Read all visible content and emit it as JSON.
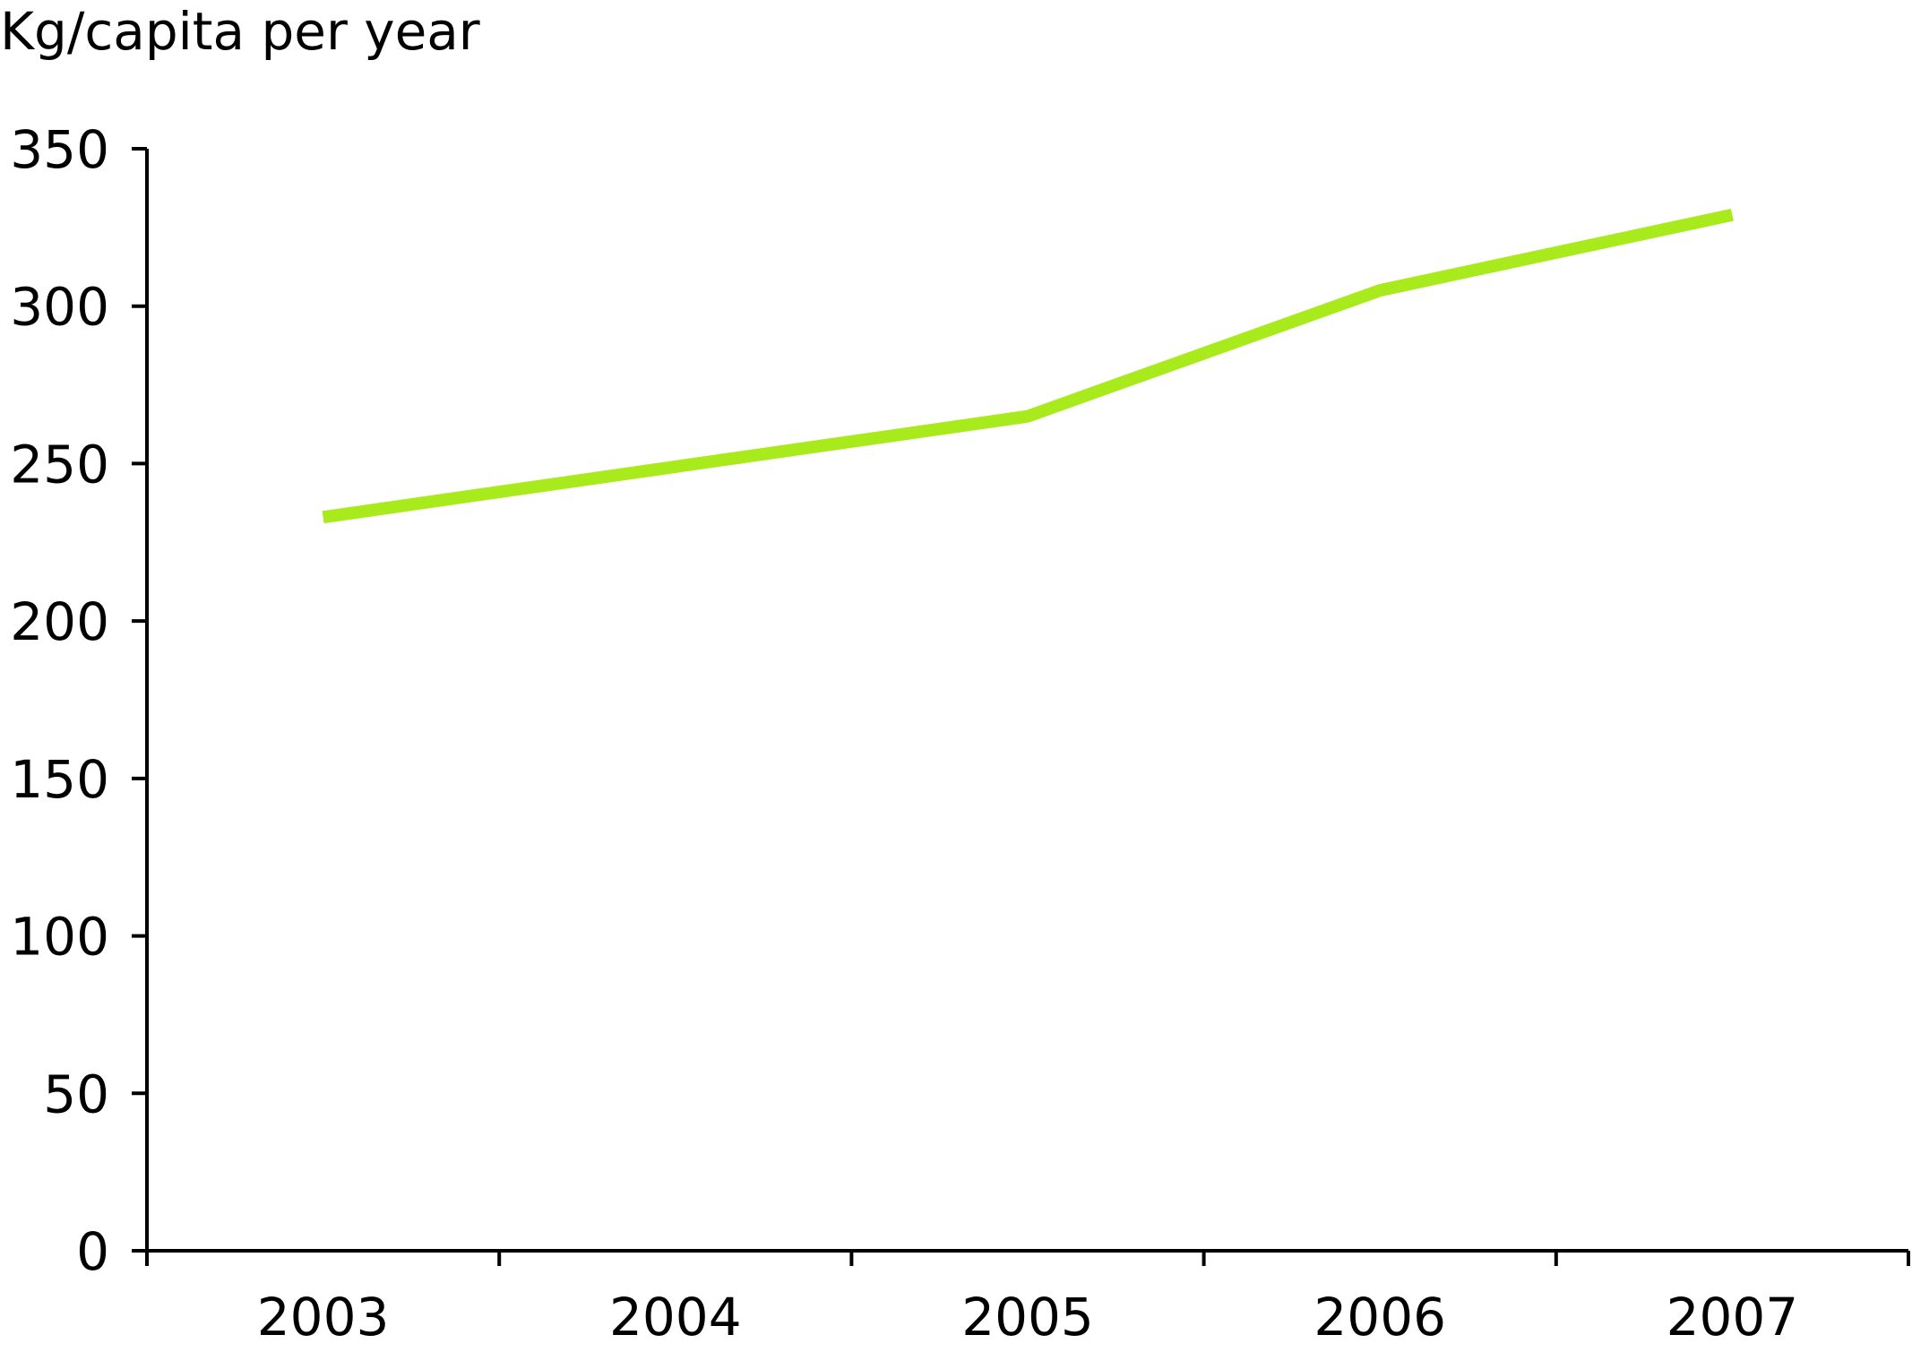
{
  "chart_data": {
    "type": "line",
    "title": "",
    "ylabel": "Kg/capita per year",
    "xlabel": "",
    "categories": [
      "2003",
      "2004",
      "2005",
      "2006",
      "2007"
    ],
    "series": [
      {
        "values": [
          233,
          249,
          265,
          305,
          329
        ],
        "color": "#a8ea1c"
      }
    ],
    "ylim": [
      0,
      350
    ],
    "yticks": [
      0,
      50,
      100,
      150,
      200,
      250,
      300,
      350
    ],
    "grid": false,
    "legend": "none",
    "axis_color": "#000000"
  }
}
